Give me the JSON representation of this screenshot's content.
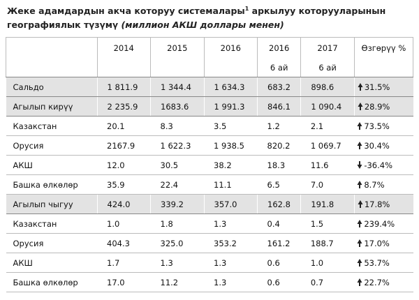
{
  "header": {
    "title_a": "Жеке адамдардын акча которуу системалары",
    "title_sup": "1",
    "title_b": "аркылуу которууларынын",
    "title_c": "географиялык түзүмү",
    "subtitle": "(миллион АКШ доллары менен)"
  },
  "table": {
    "head_row1": [
      "2014",
      "2015",
      "2016",
      "2016",
      "2017",
      "Өзгөрүү %"
    ],
    "head_row2": [
      "6 ай",
      "6 ай"
    ],
    "rows": [
      {
        "label": "Сальдо",
        "shaded": true,
        "values": [
          "1 811.9",
          "1 344.4",
          "1 634.3",
          "683.2",
          "898.6"
        ],
        "change": "31.5%",
        "trend": "up"
      },
      {
        "label": "Агылып кирүү",
        "shaded": true,
        "values": [
          "2 235.9",
          "1683.6",
          "1 991.3",
          "846.1",
          "1 090.4"
        ],
        "change": "28.9%",
        "trend": "up"
      },
      {
        "label": "Казакстан",
        "shaded": false,
        "values": [
          "20.1",
          "8.3",
          "3.5",
          "1.2",
          "2.1"
        ],
        "change": "73.5%",
        "trend": "up"
      },
      {
        "label": "Орусия",
        "shaded": false,
        "values": [
          "2167.9",
          "1 622.3",
          "1 938.5",
          "820.2",
          "1 069.7"
        ],
        "change": "30.4%",
        "trend": "up"
      },
      {
        "label": "АКШ",
        "shaded": false,
        "values": [
          "12.0",
          "30.5",
          "38.2",
          "18.3",
          "11.6"
        ],
        "change": "-36.4%",
        "trend": "down"
      },
      {
        "label": "Башка өлкөлөр",
        "shaded": false,
        "values": [
          "35.9",
          "22.4",
          "11.1",
          "6.5",
          "7.0"
        ],
        "change": "8.7%",
        "trend": "up"
      },
      {
        "label": "Агылып чыгуу",
        "shaded": true,
        "values": [
          "424.0",
          "339.2",
          "357.0",
          "162.8",
          "191.8"
        ],
        "change": "17.8%",
        "trend": "up"
      },
      {
        "label": "Казакстан",
        "shaded": false,
        "values": [
          "1.0",
          "1.8",
          "1.3",
          "0.4",
          "1.5"
        ],
        "change": "239.4%",
        "trend": "up"
      },
      {
        "label": "Орусия",
        "shaded": false,
        "values": [
          "404.3",
          "325.0",
          "353.2",
          "161.2",
          "188.7"
        ],
        "change": "17.0%",
        "trend": "up"
      },
      {
        "label": "АКШ",
        "shaded": false,
        "values": [
          "1.7",
          "1.3",
          "1.3",
          "0.6",
          "1.0"
        ],
        "change": "53.7%",
        "trend": "up"
      },
      {
        "label": "Башка өлкөлөр",
        "shaded": false,
        "values": [
          "17.0",
          "11.2",
          "1.3",
          "0.6",
          "0.7"
        ],
        "change": "22.7%",
        "trend": "up"
      }
    ]
  }
}
